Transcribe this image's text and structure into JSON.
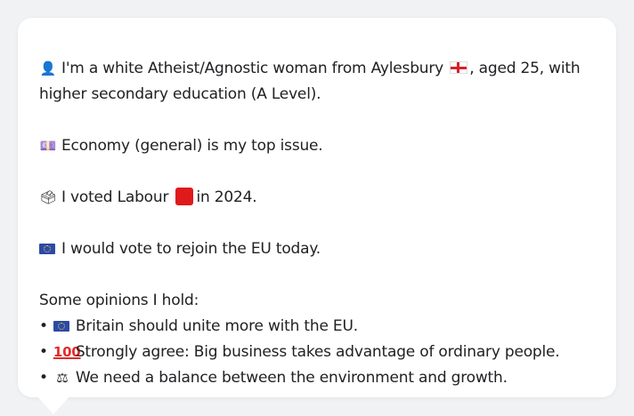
{
  "profile": {
    "line1_text": "I'm a white Atheist/Agnostic woman from Aylesbury",
    "line1_suffix": ", aged 25, with",
    "line2": "higher secondary education (A Level).",
    "issue": "Economy (general) is my top issue.",
    "vote_prefix": "I voted Labour",
    "vote_suffix": "in 2024.",
    "eu_vote": "I would vote to rejoin the EU today.",
    "opinions_title": "Some opinions I hold:",
    "opinions": [
      "Britain should unite more with the EU.",
      "Strongly agree: Big business takes advantage of ordinary people.",
      "We need a balance between the environment and growth."
    ],
    "icons": {
      "person": "bust-in-silhouette-icon",
      "england_flag": "england-flag-icon",
      "money": "banknote-icon",
      "ballot": "ballot-box-icon",
      "labour": "red-square-icon",
      "eu": "eu-flag-icon",
      "hundred": "hundred-points-icon",
      "balance": "balance-scale-icon"
    },
    "colors": {
      "labour_red": "#e0191b",
      "eu_blue": "#2b4aa6"
    }
  },
  "glyphs": {
    "person": "👤",
    "money": "💷",
    "ballot": "🗳",
    "hundred": "100",
    "balance": "⚖",
    "bullet": "•"
  }
}
